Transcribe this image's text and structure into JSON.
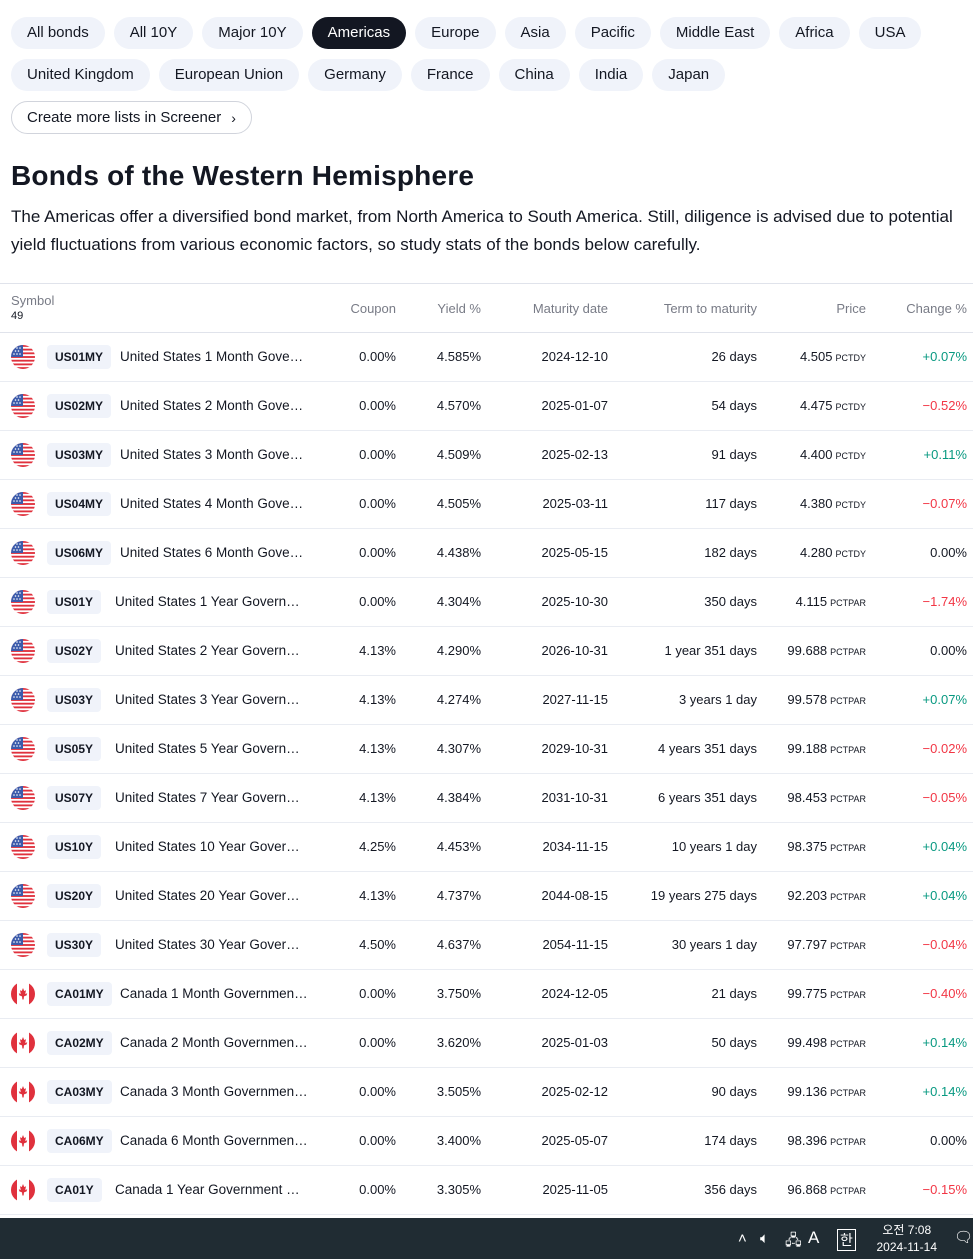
{
  "filters": {
    "row1": [
      "All bonds",
      "All 10Y",
      "Major 10Y",
      "Americas",
      "Europe",
      "Asia",
      "Pacific",
      "Middle East",
      "Africa",
      "USA"
    ],
    "row2": [
      "United Kingdom",
      "European Union",
      "Germany",
      "France",
      "China",
      "India",
      "Japan"
    ],
    "active": "Americas",
    "screener_link": "Create more lists in Screener"
  },
  "heading": "Bonds of the Western Hemisphere",
  "description": "The Americas offer a diversified bond market, from North America to South America. Still, diligence is advised due to potential yield fluctuations from various economic factors, so study stats of the bonds below carefully.",
  "table": {
    "columns": {
      "symbol": "Symbol",
      "count": "49",
      "coupon": "Coupon",
      "yield": "Yield %",
      "maturity": "Maturity date",
      "term": "Term to maturity",
      "price": "Price",
      "change": "Change %"
    },
    "rows": [
      {
        "flag": "us",
        "ticker": "US01MY",
        "name": "United States 1 Month Gove…",
        "coupon": "0.00%",
        "yield": "4.585%",
        "maturity": "2024-12-10",
        "term": "26 days",
        "price": "4.505",
        "unit": "PCTDY",
        "change": "+0.07%",
        "dir": "pos"
      },
      {
        "flag": "us",
        "ticker": "US02MY",
        "name": "United States 2 Month Gove…",
        "coupon": "0.00%",
        "yield": "4.570%",
        "maturity": "2025-01-07",
        "term": "54 days",
        "price": "4.475",
        "unit": "PCTDY",
        "change": "−0.52%",
        "dir": "neg"
      },
      {
        "flag": "us",
        "ticker": "US03MY",
        "name": "United States 3 Month Gove…",
        "coupon": "0.00%",
        "yield": "4.509%",
        "maturity": "2025-02-13",
        "term": "91 days",
        "price": "4.400",
        "unit": "PCTDY",
        "change": "+0.11%",
        "dir": "pos"
      },
      {
        "flag": "us",
        "ticker": "US04MY",
        "name": "United States 4 Month Gove…",
        "coupon": "0.00%",
        "yield": "4.505%",
        "maturity": "2025-03-11",
        "term": "117 days",
        "price": "4.380",
        "unit": "PCTDY",
        "change": "−0.07%",
        "dir": "neg"
      },
      {
        "flag": "us",
        "ticker": "US06MY",
        "name": "United States 6 Month Gove…",
        "coupon": "0.00%",
        "yield": "4.438%",
        "maturity": "2025-05-15",
        "term": "182 days",
        "price": "4.280",
        "unit": "PCTDY",
        "change": "0.00%",
        "dir": "zero"
      },
      {
        "flag": "us",
        "ticker": "US01Y",
        "name": "United States 1 Year Govern…",
        "coupon": "0.00%",
        "yield": "4.304%",
        "maturity": "2025-10-30",
        "term": "350 days",
        "price": "4.115",
        "unit": "PCTPAR",
        "change": "−1.74%",
        "dir": "neg"
      },
      {
        "flag": "us",
        "ticker": "US02Y",
        "name": "United States 2 Year Govern…",
        "coupon": "4.13%",
        "yield": "4.290%",
        "maturity": "2026-10-31",
        "term": "1 year 351 days",
        "price": "99.688",
        "unit": "PCTPAR",
        "change": "0.00%",
        "dir": "zero"
      },
      {
        "flag": "us",
        "ticker": "US03Y",
        "name": "United States 3 Year Govern…",
        "coupon": "4.13%",
        "yield": "4.274%",
        "maturity": "2027-11-15",
        "term": "3 years 1 day",
        "price": "99.578",
        "unit": "PCTPAR",
        "change": "+0.07%",
        "dir": "pos"
      },
      {
        "flag": "us",
        "ticker": "US05Y",
        "name": "United States 5 Year Govern…",
        "coupon": "4.13%",
        "yield": "4.307%",
        "maturity": "2029-10-31",
        "term": "4 years 351 days",
        "price": "99.188",
        "unit": "PCTPAR",
        "change": "−0.02%",
        "dir": "neg"
      },
      {
        "flag": "us",
        "ticker": "US07Y",
        "name": "United States 7 Year Govern…",
        "coupon": "4.13%",
        "yield": "4.384%",
        "maturity": "2031-10-31",
        "term": "6 years 351 days",
        "price": "98.453",
        "unit": "PCTPAR",
        "change": "−0.05%",
        "dir": "neg"
      },
      {
        "flag": "us",
        "ticker": "US10Y",
        "name": "United States 10 Year Gover…",
        "coupon": "4.25%",
        "yield": "4.453%",
        "maturity": "2034-11-15",
        "term": "10 years 1 day",
        "price": "98.375",
        "unit": "PCTPAR",
        "change": "+0.04%",
        "dir": "pos"
      },
      {
        "flag": "us",
        "ticker": "US20Y",
        "name": "United States 20 Year Gover…",
        "coupon": "4.13%",
        "yield": "4.737%",
        "maturity": "2044-08-15",
        "term": "19 years 275 days",
        "price": "92.203",
        "unit": "PCTPAR",
        "change": "+0.04%",
        "dir": "pos"
      },
      {
        "flag": "us",
        "ticker": "US30Y",
        "name": "United States 30 Year Gover…",
        "coupon": "4.50%",
        "yield": "4.637%",
        "maturity": "2054-11-15",
        "term": "30 years 1 day",
        "price": "97.797",
        "unit": "PCTPAR",
        "change": "−0.04%",
        "dir": "neg"
      },
      {
        "flag": "ca",
        "ticker": "CA01MY",
        "name": "Canada 1 Month Governmen…",
        "coupon": "0.00%",
        "yield": "3.750%",
        "maturity": "2024-12-05",
        "term": "21 days",
        "price": "99.775",
        "unit": "PCTPAR",
        "change": "−0.40%",
        "dir": "neg"
      },
      {
        "flag": "ca",
        "ticker": "CA02MY",
        "name": "Canada 2 Month Governmen…",
        "coupon": "0.00%",
        "yield": "3.620%",
        "maturity": "2025-01-03",
        "term": "50 days",
        "price": "99.498",
        "unit": "PCTPAR",
        "change": "+0.14%",
        "dir": "pos"
      },
      {
        "flag": "ca",
        "ticker": "CA03MY",
        "name": "Canada 3 Month Governmen…",
        "coupon": "0.00%",
        "yield": "3.505%",
        "maturity": "2025-02-12",
        "term": "90 days",
        "price": "99.136",
        "unit": "PCTPAR",
        "change": "+0.14%",
        "dir": "pos"
      },
      {
        "flag": "ca",
        "ticker": "CA06MY",
        "name": "Canada 6 Month Governmen…",
        "coupon": "0.00%",
        "yield": "3.400%",
        "maturity": "2025-05-07",
        "term": "174 days",
        "price": "98.396",
        "unit": "PCTPAR",
        "change": "0.00%",
        "dir": "zero"
      },
      {
        "flag": "ca",
        "ticker": "CA01Y",
        "name": "Canada 1 Year Government …",
        "coupon": "0.00%",
        "yield": "3.305%",
        "maturity": "2025-11-05",
        "term": "356 days",
        "price": "96.868",
        "unit": "PCTPAR",
        "change": "−0.15%",
        "dir": "neg"
      }
    ]
  },
  "taskbar": {
    "ime_mode": "A",
    "ime_lang": "한",
    "time": "오전 7:08",
    "date": "2024-11-14"
  },
  "colors": {
    "positive": "#089981",
    "negative": "#f23645",
    "active_chip": "#131722",
    "chip_bg": "#f0f3fa"
  }
}
